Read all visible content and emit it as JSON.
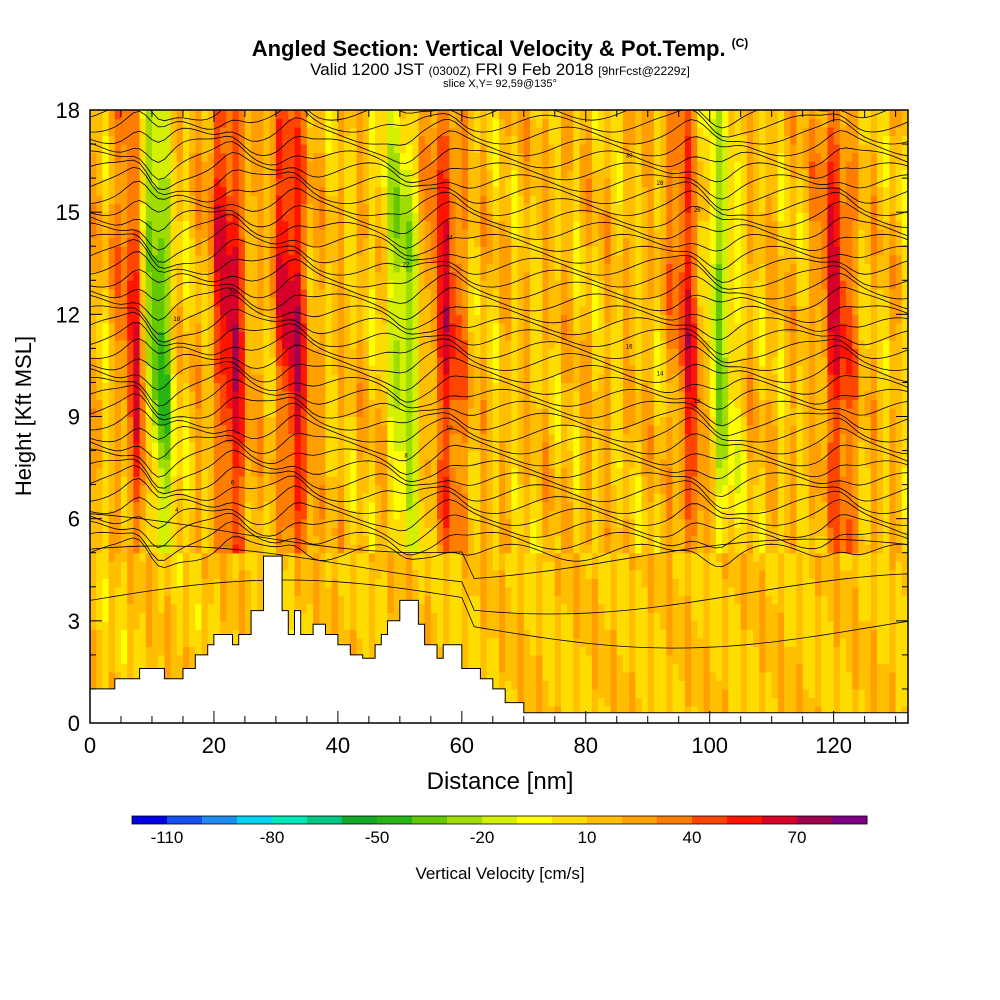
{
  "header": {
    "title": "Angled Section: Vertical Velocity & Pot.Temp.",
    "title_unit": "(C)",
    "valid_prefix": "Valid 1200 JST",
    "valid_utc": "(0300Z)",
    "valid_date": "FRI 9 Feb 2018",
    "forecast": "[9hrFcst@2229z]",
    "slice": "slice X,Y= 92,59@135°"
  },
  "chart_data": {
    "type": "heatmap",
    "xlabel": "Distance [nm]",
    "ylabel": "Height [Kft MSL]",
    "xlim": [
      0,
      132
    ],
    "ylim": [
      0,
      18
    ],
    "xticks": [
      0,
      20,
      40,
      60,
      80,
      100,
      120
    ],
    "yticks": [
      0,
      3,
      6,
      9,
      12,
      15,
      18
    ],
    "grid": false,
    "terrain_profile": [
      [
        0,
        1
      ],
      [
        4,
        1
      ],
      [
        4,
        1.3
      ],
      [
        8,
        1.3
      ],
      [
        8,
        1.6
      ],
      [
        12,
        1.6
      ],
      [
        12,
        1.3
      ],
      [
        15,
        1.3
      ],
      [
        15,
        1.6
      ],
      [
        17,
        1.6
      ],
      [
        17,
        2
      ],
      [
        19,
        2
      ],
      [
        19,
        2.3
      ],
      [
        20,
        2.3
      ],
      [
        20,
        2.6
      ],
      [
        23,
        2.6
      ],
      [
        23,
        2.3
      ],
      [
        24,
        2.3
      ],
      [
        24,
        2.6
      ],
      [
        26,
        2.6
      ],
      [
        26,
        3.3
      ],
      [
        28,
        3.3
      ],
      [
        28,
        4.9
      ],
      [
        31,
        4.9
      ],
      [
        31,
        3.3
      ],
      [
        32,
        3.3
      ],
      [
        32,
        2.6
      ],
      [
        33,
        2.6
      ],
      [
        33,
        3.3
      ],
      [
        34,
        3.3
      ],
      [
        34,
        2.6
      ],
      [
        36,
        2.6
      ],
      [
        36,
        2.9
      ],
      [
        38,
        2.9
      ],
      [
        38,
        2.6
      ],
      [
        40,
        2.6
      ],
      [
        40,
        2.3
      ],
      [
        42,
        2.3
      ],
      [
        42,
        2
      ],
      [
        44,
        2
      ],
      [
        44,
        1.9
      ],
      [
        46,
        1.9
      ],
      [
        46,
        2.3
      ],
      [
        47,
        2.3
      ],
      [
        47,
        2.6
      ],
      [
        48,
        2.6
      ],
      [
        48,
        3
      ],
      [
        50,
        3
      ],
      [
        50,
        3.6
      ],
      [
        53,
        3.6
      ],
      [
        53,
        2.9
      ],
      [
        54,
        2.9
      ],
      [
        54,
        2.3
      ],
      [
        56,
        2.3
      ],
      [
        56,
        1.9
      ],
      [
        57,
        1.9
      ],
      [
        57,
        2.3
      ],
      [
        60,
        2.3
      ],
      [
        60,
        1.6
      ],
      [
        63,
        1.6
      ],
      [
        63,
        1.3
      ],
      [
        65,
        1.3
      ],
      [
        65,
        1
      ],
      [
        67,
        1
      ],
      [
        67,
        0.6
      ],
      [
        70,
        0.6
      ],
      [
        70,
        0.3
      ],
      [
        132,
        0.3
      ],
      [
        132,
        0
      ]
    ],
    "vertical_velocity": {
      "units": "cm/s",
      "features": [
        {
          "type": "updraft",
          "x": 8,
          "value": 50
        },
        {
          "type": "downdraft",
          "x": 11,
          "value": -70
        },
        {
          "type": "updraft",
          "x": 23,
          "value": 55
        },
        {
          "type": "updraft",
          "x": 33,
          "value": 55
        },
        {
          "type": "downdraft",
          "x": 51,
          "value": -45
        },
        {
          "type": "updraft",
          "x": 58,
          "value": 45
        },
        {
          "type": "updraft",
          "x": 97,
          "value": 40
        },
        {
          "type": "downdraft",
          "x": 102,
          "value": -40
        },
        {
          "type": "updraft",
          "x": 121,
          "value": 45
        }
      ]
    },
    "potential_temperature": {
      "units": "C",
      "contour_labels": [
        "4",
        "6",
        "8",
        "10",
        "12",
        "14",
        "16",
        "18",
        "20",
        "22",
        "24",
        "26",
        "28",
        "30"
      ]
    },
    "colorbar": {
      "title": "Vertical Velocity [cm/s]",
      "levels": [
        -120,
        -110,
        -100,
        -90,
        -80,
        -70,
        -60,
        -50,
        -40,
        -30,
        -20,
        -10,
        0,
        10,
        20,
        30,
        40,
        50,
        60,
        70,
        80,
        90
      ],
      "colors": [
        "#0000e6",
        "#1450f0",
        "#1e8cf0",
        "#00d2f0",
        "#00e6b4",
        "#00c882",
        "#14aa28",
        "#28b414",
        "#64c800",
        "#a0dc00",
        "#d2f000",
        "#ffff00",
        "#ffdc00",
        "#ffbe00",
        "#ffa000",
        "#ff7d00",
        "#ff4600",
        "#ff1400",
        "#d70028",
        "#a00050",
        "#7d0082"
      ],
      "labels": [
        "-110",
        "-80",
        "-50",
        "-20",
        "10",
        "40",
        "70"
      ]
    }
  }
}
